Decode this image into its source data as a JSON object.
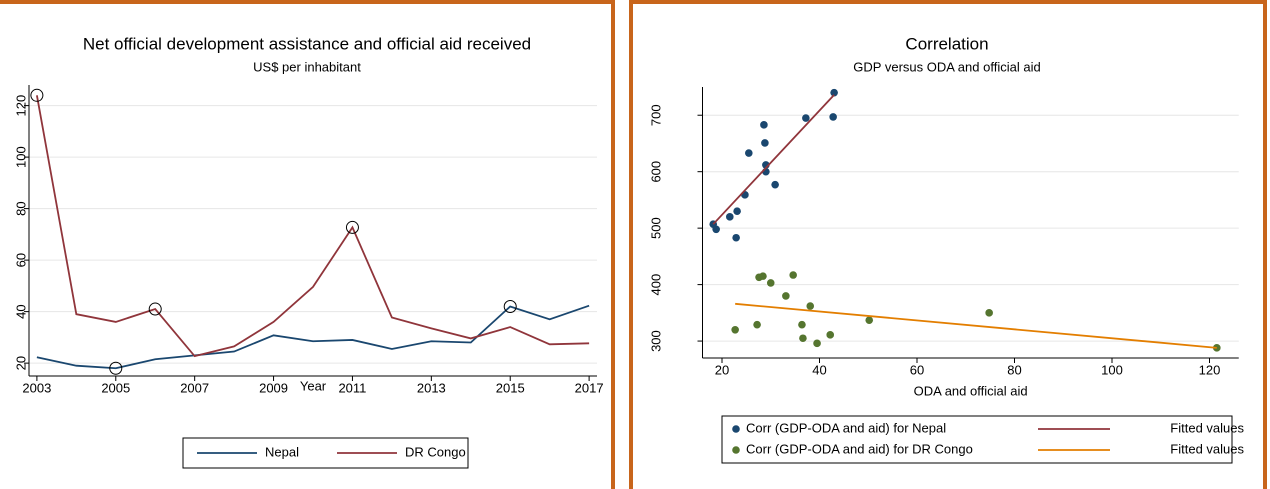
{
  "chart_data": [
    {
      "type": "line",
      "title": "Net official development assistance and official aid received",
      "subtitle": "US$ per inhabitant",
      "x_label": "Year",
      "x": [
        2003,
        2004,
        2005,
        2006,
        2007,
        2008,
        2009,
        2010,
        2011,
        2012,
        2013,
        2014,
        2015,
        2016,
        2017
      ],
      "xlim": [
        2002.8,
        2017.2
      ],
      "xticks": [
        2003,
        2005,
        2007,
        2009,
        2011,
        2013,
        2015,
        2017
      ],
      "ylim": [
        15,
        128
      ],
      "yticks": [
        20,
        40,
        60,
        80,
        100,
        120
      ],
      "grid": true,
      "series": [
        {
          "name": "Nepal",
          "color": "#1a476f",
          "values": [
            22.3,
            19,
            18,
            21.5,
            23,
            24.5,
            30.8,
            28.5,
            29,
            25.5,
            28.5,
            28,
            42,
            37,
            42.3
          ],
          "circled": [
            2,
            12
          ]
        },
        {
          "name": "DR Congo",
          "color": "#90353b",
          "values": [
            124,
            39,
            36,
            41,
            22.7,
            26.5,
            36,
            49.6,
            72.7,
            37.7,
            33.5,
            29.6,
            34,
            27.3,
            27.7
          ],
          "circled": [
            0,
            3,
            8
          ]
        }
      ]
    },
    {
      "type": "scatter",
      "title": "Correlation",
      "subtitle": "GDP versus ODA and official aid",
      "x_label": "ODA and official aid",
      "xlim": [
        16,
        126
      ],
      "xticks": [
        20,
        40,
        60,
        80,
        100,
        120
      ],
      "ylim": [
        270,
        750
      ],
      "yticks": [
        300,
        400,
        500,
        600,
        700
      ],
      "grid": true,
      "series": [
        {
          "name": "Corr (GDP-ODA and aid) for Nepal",
          "type": "scatter",
          "color": "#1a476f",
          "x": [
            18.2,
            18.8,
            21.6,
            23.1,
            22.9,
            24.7,
            25.5,
            28.6,
            28.8,
            29,
            29,
            30.9,
            37.2,
            42.8,
            43
          ],
          "values": [
            507,
            498,
            520,
            530,
            483,
            559,
            633,
            683,
            651,
            612,
            600,
            577,
            695,
            697,
            740
          ]
        },
        {
          "name": "Corr (GDP-ODA and aid) for DR Congo",
          "type": "scatter",
          "color": "#55752f",
          "x": [
            22.7,
            27.2,
            27.6,
            28.4,
            30,
            33.1,
            34.6,
            36.4,
            36.6,
            38.1,
            39.5,
            42.2,
            50.2,
            74.8,
            121.5
          ],
          "values": [
            320,
            329,
            413,
            415,
            403,
            380,
            417,
            329,
            305,
            362,
            296,
            311,
            337,
            350,
            288
          ]
        },
        {
          "name": "Fitted values",
          "type": "line",
          "color": "#90353b",
          "x": [
            18.2,
            43
          ],
          "values": [
            507,
            736
          ]
        },
        {
          "name": "Fitted values",
          "type": "line",
          "color": "#e37e00",
          "x": [
            22.7,
            121.5
          ],
          "values": [
            366,
            288
          ]
        }
      ]
    }
  ]
}
